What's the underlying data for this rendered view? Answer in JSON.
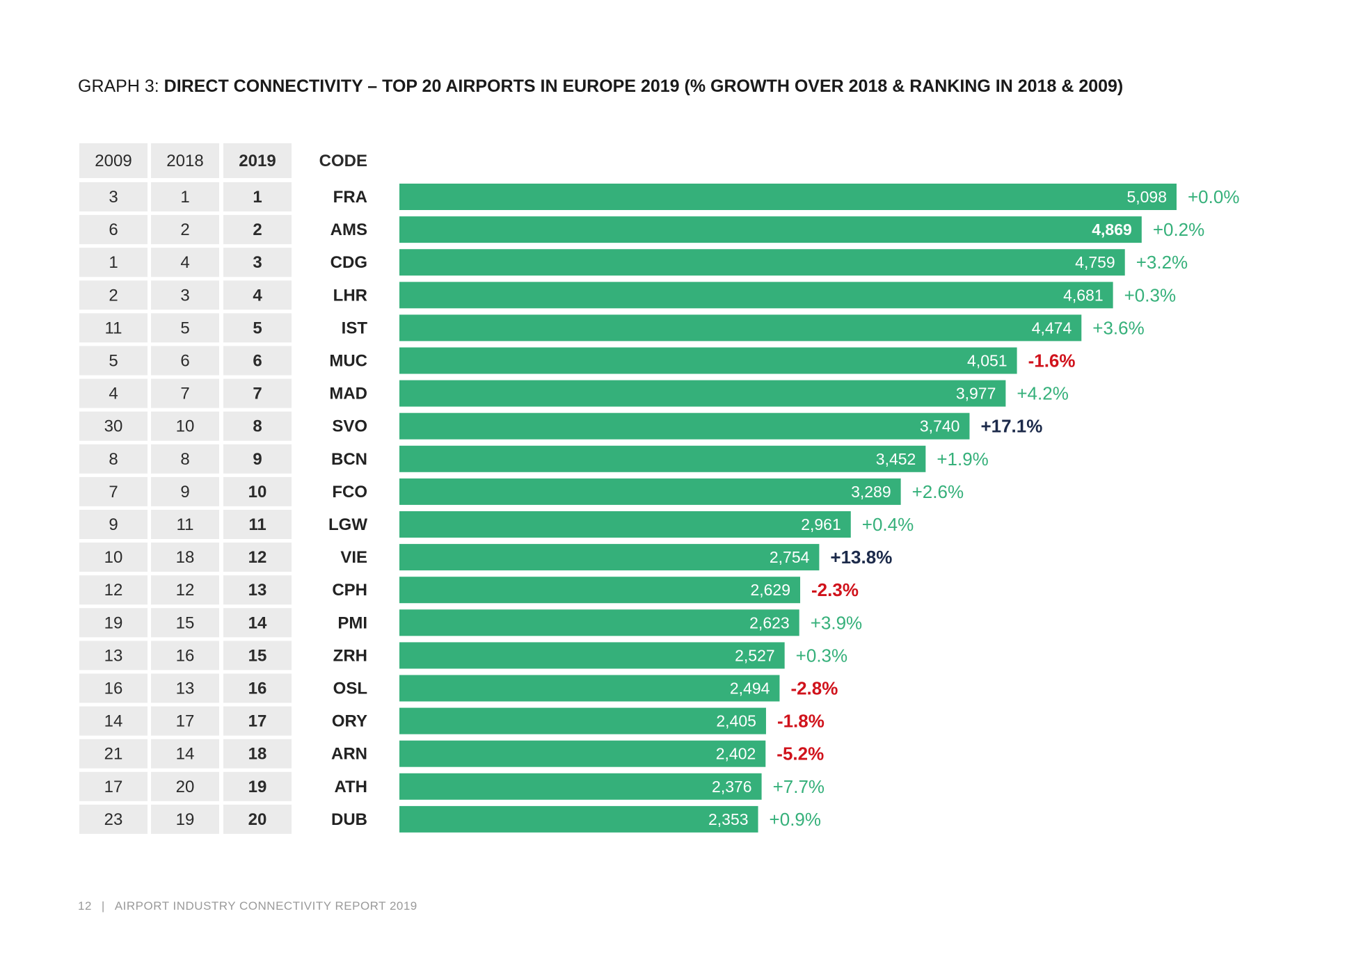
{
  "title": {
    "lead": "GRAPH 3: ",
    "main": "DIRECT CONNECTIVITY – TOP 20 AIRPORTS IN EUROPE 2019 (% GROWTH OVER 2018 & RANKING IN 2018 & 2009)"
  },
  "table_headers": [
    "2009",
    "2018",
    "2019",
    "CODE"
  ],
  "footer": {
    "page_number": "12",
    "separator": "|",
    "report_title": "AIRPORT INDUSTRY CONNECTIVITY REPORT 2019"
  },
  "colors": {
    "bar": "#35b07a",
    "cell_bg": "#ebebeb",
    "growth_positive": "#35b07a",
    "growth_negative": "#d0121b",
    "growth_highlight": "#1c2a4a"
  },
  "chart_data": {
    "type": "bar",
    "orientation": "horizontal",
    "title": "GRAPH 3: DIRECT CONNECTIVITY – TOP 20 AIRPORTS IN EUROPE 2019 (% GROWTH OVER 2018 & RANKING IN 2018 & 2009)",
    "xlim": [
      0,
      5098
    ],
    "grid": false,
    "rows": [
      {
        "code": "FRA",
        "rank_2009": "3",
        "rank_2018": "1",
        "rank_2019": "1",
        "value": 5098,
        "label": "5,098",
        "growth": "+0.0%",
        "sign": "positive",
        "value_bold": false
      },
      {
        "code": "AMS",
        "rank_2009": "6",
        "rank_2018": "2",
        "rank_2019": "2",
        "value": 4869,
        "label": "4,869",
        "growth": "+0.2%",
        "sign": "positive",
        "value_bold": true
      },
      {
        "code": "CDG",
        "rank_2009": "1",
        "rank_2018": "4",
        "rank_2019": "3",
        "value": 4759,
        "label": "4,759",
        "growth": "+3.2%",
        "sign": "positive",
        "value_bold": false
      },
      {
        "code": "LHR",
        "rank_2009": "2",
        "rank_2018": "3",
        "rank_2019": "4",
        "value": 4681,
        "label": "4,681",
        "growth": "+0.3%",
        "sign": "positive",
        "value_bold": false
      },
      {
        "code": "IST",
        "rank_2009": "11",
        "rank_2018": "5",
        "rank_2019": "5",
        "value": 4474,
        "label": "4,474",
        "growth": "+3.6%",
        "sign": "positive",
        "value_bold": false
      },
      {
        "code": "MUC",
        "rank_2009": "5",
        "rank_2018": "6",
        "rank_2019": "6",
        "value": 4051,
        "label": "4,051",
        "growth": "-1.6%",
        "sign": "negative",
        "value_bold": false
      },
      {
        "code": "MAD",
        "rank_2009": "4",
        "rank_2018": "7",
        "rank_2019": "7",
        "value": 3977,
        "label": "3,977",
        "growth": "+4.2%",
        "sign": "positive",
        "value_bold": false
      },
      {
        "code": "SVO",
        "rank_2009": "30",
        "rank_2018": "10",
        "rank_2019": "8",
        "value": 3740,
        "label": "3,740",
        "growth": "+17.1%",
        "sign": "highlight",
        "value_bold": false
      },
      {
        "code": "BCN",
        "rank_2009": "8",
        "rank_2018": "8",
        "rank_2019": "9",
        "value": 3452,
        "label": "3,452",
        "growth": "+1.9%",
        "sign": "positive",
        "value_bold": false
      },
      {
        "code": "FCO",
        "rank_2009": "7",
        "rank_2018": "9",
        "rank_2019": "10",
        "value": 3289,
        "label": "3,289",
        "growth": "+2.6%",
        "sign": "positive",
        "value_bold": false
      },
      {
        "code": "LGW",
        "rank_2009": "9",
        "rank_2018": "11",
        "rank_2019": "11",
        "value": 2961,
        "label": "2,961",
        "growth": "+0.4%",
        "sign": "positive",
        "value_bold": false
      },
      {
        "code": "VIE",
        "rank_2009": "10",
        "rank_2018": "18",
        "rank_2019": "12",
        "value": 2754,
        "label": "2,754",
        "growth": "+13.8%",
        "sign": "highlight",
        "value_bold": false
      },
      {
        "code": "CPH",
        "rank_2009": "12",
        "rank_2018": "12",
        "rank_2019": "13",
        "value": 2629,
        "label": "2,629",
        "growth": "-2.3%",
        "sign": "negative",
        "value_bold": false
      },
      {
        "code": "PMI",
        "rank_2009": "19",
        "rank_2018": "15",
        "rank_2019": "14",
        "value": 2623,
        "label": "2,623",
        "growth": "+3.9%",
        "sign": "positive",
        "value_bold": false
      },
      {
        "code": "ZRH",
        "rank_2009": "13",
        "rank_2018": "16",
        "rank_2019": "15",
        "value": 2527,
        "label": "2,527",
        "growth": "+0.3%",
        "sign": "positive",
        "value_bold": false
      },
      {
        "code": "OSL",
        "rank_2009": "16",
        "rank_2018": "13",
        "rank_2019": "16",
        "value": 2494,
        "label": "2,494",
        "growth": "-2.8%",
        "sign": "negative",
        "value_bold": false
      },
      {
        "code": "ORY",
        "rank_2009": "14",
        "rank_2018": "17",
        "rank_2019": "17",
        "value": 2405,
        "label": "2,405",
        "growth": "-1.8%",
        "sign": "negative",
        "value_bold": false
      },
      {
        "code": "ARN",
        "rank_2009": "21",
        "rank_2018": "14",
        "rank_2019": "18",
        "value": 2402,
        "label": "2,402",
        "growth": "-5.2%",
        "sign": "negative",
        "value_bold": false
      },
      {
        "code": "ATH",
        "rank_2009": "17",
        "rank_2018": "20",
        "rank_2019": "19",
        "value": 2376,
        "label": "2,376",
        "growth": "+7.7%",
        "sign": "positive",
        "value_bold": false
      },
      {
        "code": "DUB",
        "rank_2009": "23",
        "rank_2018": "19",
        "rank_2019": "20",
        "value": 2353,
        "label": "2,353",
        "growth": "+0.9%",
        "sign": "positive",
        "value_bold": false
      }
    ]
  }
}
